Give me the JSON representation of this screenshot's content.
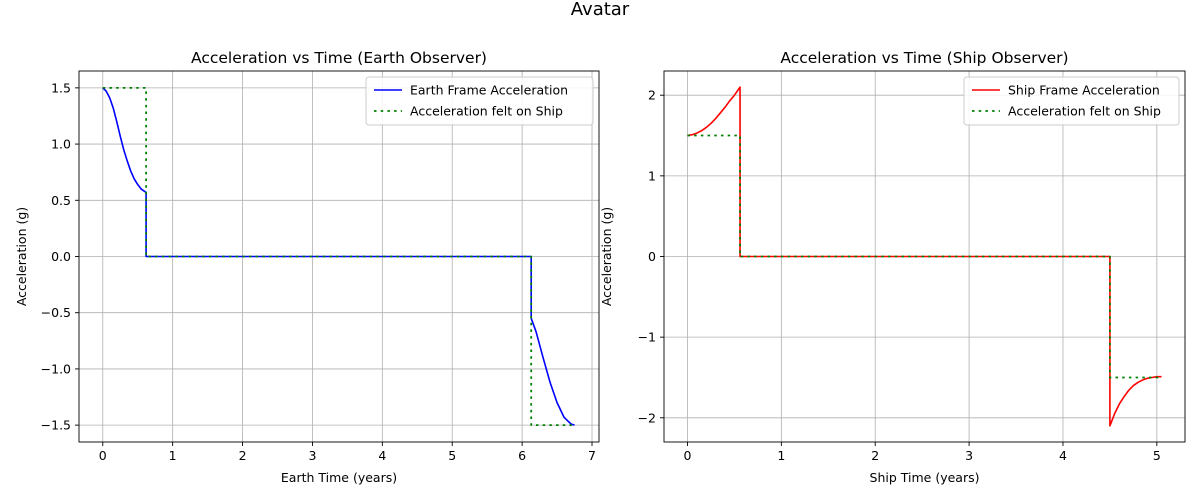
{
  "figure": {
    "title": "Avatar"
  },
  "colors": {
    "earth": "#0000ff",
    "ship": "#ff0000",
    "felt": "#008000",
    "grid": "#b0b0b0"
  },
  "chart_data": [
    {
      "type": "line",
      "title": "Acceleration vs Time (Earth Observer)",
      "xlabel": "Earth Time (years)",
      "ylabel": "Acceleration (g)",
      "xlim": [
        -0.34,
        7.1
      ],
      "ylim": [
        -1.65,
        1.65
      ],
      "xticks": [
        0,
        1,
        2,
        3,
        4,
        5,
        6,
        7
      ],
      "xtick_labels": [
        "0",
        "1",
        "2",
        "3",
        "4",
        "5",
        "6",
        "7"
      ],
      "yticks": [
        1.5,
        1.0,
        0.5,
        0.0,
        -0.5,
        -1.0,
        -1.5
      ],
      "ytick_labels": [
        "1.5",
        "1.0",
        "0.5",
        "0.0",
        "−0.5",
        "−1.0",
        "−1.5"
      ],
      "grid": true,
      "legend": "upper right",
      "series": [
        {
          "name": "Earth Frame Acceleration",
          "color": "#0000ff",
          "style": "solid",
          "x": [
            0,
            0.05,
            0.1,
            0.15,
            0.2,
            0.25,
            0.3,
            0.35,
            0.4,
            0.45,
            0.5,
            0.55,
            0.62,
            0.62,
            6.13,
            6.13,
            6.2,
            6.3,
            6.4,
            6.5,
            6.6,
            6.7,
            6.75
          ],
          "y": [
            1.5,
            1.47,
            1.41,
            1.32,
            1.2,
            1.07,
            0.95,
            0.85,
            0.76,
            0.69,
            0.64,
            0.6,
            0.57,
            0.0,
            0.0,
            -0.55,
            -0.67,
            -0.9,
            -1.12,
            -1.3,
            -1.43,
            -1.49,
            -1.5
          ]
        },
        {
          "name": "Acceleration felt on Ship",
          "color": "#008000",
          "style": "dotted",
          "x": [
            0,
            0.62,
            0.62,
            6.13,
            6.13,
            6.75
          ],
          "y": [
            1.5,
            1.5,
            0.0,
            0.0,
            -1.5,
            -1.5
          ]
        }
      ]
    },
    {
      "type": "line",
      "title": "Acceleration vs Time (Ship Observer)",
      "xlabel": "Ship Time (years)",
      "ylabel": "Acceleration (g)",
      "xlim": [
        -0.25,
        5.3
      ],
      "ylim": [
        -2.3,
        2.3
      ],
      "xticks": [
        0,
        1,
        2,
        3,
        4,
        5
      ],
      "xtick_labels": [
        "0",
        "1",
        "2",
        "3",
        "4",
        "5"
      ],
      "yticks": [
        2,
        1,
        0,
        -1,
        -2
      ],
      "ytick_labels": [
        "2",
        "1",
        "0",
        "−1",
        "−2"
      ],
      "grid": true,
      "legend": "upper right",
      "series": [
        {
          "name": "Ship Frame Acceleration",
          "color": "#ff0000",
          "style": "solid",
          "x": [
            0,
            0.05,
            0.1,
            0.15,
            0.2,
            0.25,
            0.3,
            0.35,
            0.4,
            0.45,
            0.5,
            0.56,
            0.56,
            4.5,
            4.5,
            4.55,
            4.6,
            4.65,
            4.7,
            4.75,
            4.8,
            4.85,
            4.9,
            4.95,
            5.0,
            5.05
          ],
          "y": [
            1.5,
            1.51,
            1.53,
            1.56,
            1.6,
            1.65,
            1.71,
            1.78,
            1.85,
            1.93,
            2.0,
            2.1,
            0.0,
            0.0,
            -2.1,
            -1.95,
            -1.83,
            -1.74,
            -1.66,
            -1.6,
            -1.56,
            -1.53,
            -1.51,
            -1.5,
            -1.49,
            -1.49
          ]
        },
        {
          "name": "Acceleration felt on Ship",
          "color": "#008000",
          "style": "dotted",
          "x": [
            0,
            0.56,
            0.56,
            4.5,
            4.5,
            5.05
          ],
          "y": [
            1.5,
            1.5,
            0.0,
            0.0,
            -1.5,
            -1.5
          ]
        }
      ]
    }
  ]
}
